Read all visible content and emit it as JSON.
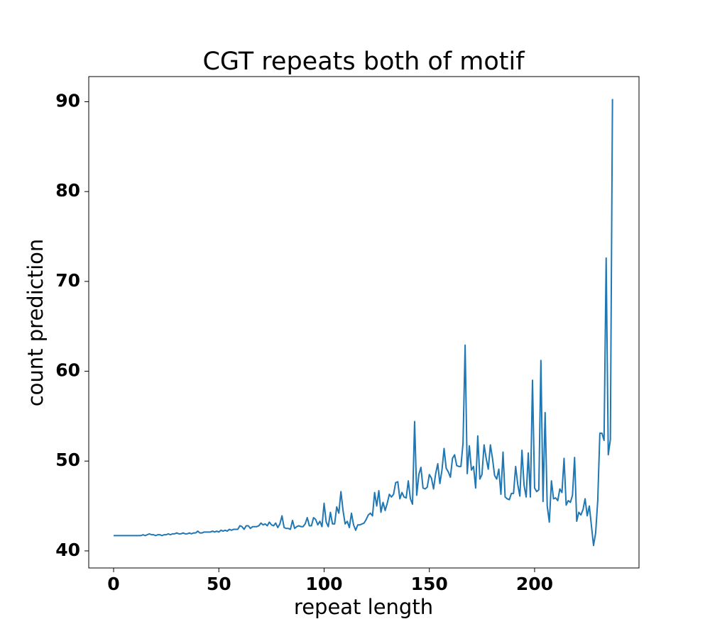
{
  "chart_data": {
    "type": "line",
    "title": "CGT repeats both of motif",
    "xlabel": "repeat length",
    "ylabel": "count prediction",
    "x": [
      0,
      1,
      2,
      3,
      4,
      5,
      6,
      7,
      8,
      9,
      10,
      11,
      12,
      13,
      14,
      15,
      16,
      17,
      18,
      19,
      20,
      21,
      22,
      23,
      24,
      25,
      26,
      27,
      28,
      29,
      30,
      31,
      32,
      33,
      34,
      35,
      36,
      37,
      38,
      39,
      40,
      41,
      42,
      43,
      44,
      45,
      46,
      47,
      48,
      49,
      50,
      51,
      52,
      53,
      54,
      55,
      56,
      57,
      58,
      59,
      60,
      61,
      62,
      63,
      64,
      65,
      66,
      67,
      68,
      69,
      70,
      71,
      72,
      73,
      74,
      75,
      76,
      77,
      78,
      79,
      80,
      81,
      82,
      83,
      84,
      85,
      86,
      87,
      88,
      89,
      90,
      91,
      92,
      93,
      94,
      95,
      96,
      97,
      98,
      99,
      100,
      101,
      102,
      103,
      104,
      105,
      106,
      107,
      108,
      109,
      110,
      111,
      112,
      113,
      114,
      115,
      116,
      117,
      118,
      119,
      120,
      121,
      122,
      123,
      124,
      125,
      126,
      127,
      128,
      129,
      130,
      131,
      132,
      133,
      134,
      135,
      136,
      137,
      138,
      139,
      140,
      141,
      142,
      143,
      144,
      145,
      146,
      147,
      148,
      149,
      150,
      151,
      152,
      153,
      154,
      155,
      156,
      157,
      158,
      159,
      160,
      161,
      162,
      163,
      164,
      165,
      166,
      167,
      168,
      169,
      170,
      171,
      172,
      173,
      174,
      175,
      176,
      177,
      178,
      179,
      180,
      181,
      182,
      183,
      184,
      185,
      186,
      187,
      188,
      189,
      190,
      191,
      192,
      193,
      194,
      195,
      196,
      197,
      198,
      199,
      200,
      201,
      202,
      203,
      204,
      205,
      206,
      207,
      208,
      209,
      210,
      211,
      212,
      213,
      214,
      215,
      216,
      217,
      218,
      219,
      220,
      221,
      222,
      223,
      224,
      225,
      226,
      227,
      228,
      229,
      230,
      231,
      232,
      233,
      234,
      235,
      236,
      237
    ],
    "series": [
      {
        "color": "#1f77b4",
        "values": [
          41.7,
          41.7,
          41.7,
          41.7,
          41.7,
          41.7,
          41.7,
          41.7,
          41.7,
          41.7,
          41.7,
          41.7,
          41.7,
          41.7,
          41.8,
          41.7,
          41.8,
          41.9,
          41.8,
          41.8,
          41.7,
          41.8,
          41.8,
          41.7,
          41.8,
          41.8,
          41.9,
          41.8,
          41.9,
          41.9,
          42.0,
          41.9,
          41.9,
          42.0,
          41.9,
          41.9,
          42.0,
          41.9,
          42.0,
          42.0,
          42.2,
          42.0,
          42.0,
          42.1,
          42.1,
          42.1,
          42.1,
          42.2,
          42.1,
          42.2,
          42.1,
          42.3,
          42.2,
          42.3,
          42.2,
          42.4,
          42.3,
          42.4,
          42.4,
          42.4,
          42.8,
          42.7,
          42.4,
          42.8,
          42.8,
          42.5,
          42.7,
          42.7,
          42.7,
          42.8,
          43.1,
          42.9,
          43.0,
          42.8,
          43.2,
          42.9,
          42.8,
          43.1,
          42.6,
          43.0,
          43.9,
          42.6,
          42.5,
          42.5,
          42.4,
          43.4,
          42.5,
          42.7,
          42.8,
          42.7,
          42.7,
          43.0,
          43.7,
          42.8,
          42.8,
          43.7,
          43.5,
          42.9,
          43.3,
          42.7,
          45.3,
          43.2,
          42.7,
          44.3,
          43.0,
          43.0,
          44.9,
          44.2,
          46.6,
          44.5,
          43.0,
          43.3,
          42.6,
          44.2,
          42.9,
          42.3,
          42.9,
          42.9,
          43.0,
          43.1,
          43.5,
          44.0,
          44.2,
          43.9,
          46.5,
          45.0,
          46.7,
          44.3,
          45.4,
          44.5,
          45.3,
          46.3,
          46.0,
          46.3,
          47.6,
          47.7,
          45.8,
          46.5,
          46.0,
          45.9,
          47.8,
          45.8,
          45.2,
          54.4,
          46.2,
          48.5,
          49.3,
          47.0,
          46.9,
          47.1,
          48.5,
          48.1,
          46.9,
          48.6,
          49.7,
          47.5,
          49.0,
          51.4,
          49.2,
          48.8,
          48.2,
          50.3,
          50.7,
          49.5,
          49.4,
          49.4,
          52.0,
          62.9,
          48.6,
          51.7,
          49.0,
          49.4,
          47.0,
          52.8,
          48.0,
          48.5,
          51.8,
          50.3,
          49.1,
          51.8,
          50.3,
          48.4,
          48.0,
          49.1,
          46.3,
          51.0,
          46.0,
          45.8,
          45.7,
          46.4,
          46.4,
          49.4,
          47.4,
          46.1,
          51.2,
          47.3,
          46.0,
          50.9,
          46.0,
          59.0,
          47.0,
          46.6,
          46.8,
          61.2,
          45.5,
          55.4,
          45.0,
          43.2,
          47.8,
          45.8,
          45.9,
          45.6,
          46.9,
          46.5,
          50.3,
          45.1,
          45.6,
          45.4,
          46.2,
          50.4,
          43.3,
          44.3,
          44.0,
          44.6,
          45.8,
          43.9,
          45.0,
          42.8,
          40.6,
          42.0,
          45.6,
          53.1,
          53.1,
          52.3,
          72.6,
          50.7,
          52.4,
          90.3
        ]
      }
    ],
    "xlim": [
      -11.8,
      249.6
    ],
    "ylim": [
      38.1,
      92.8
    ],
    "xticks": [
      0,
      50,
      100,
      150,
      200
    ],
    "yticks": [
      40,
      50,
      60,
      70,
      80,
      90
    ]
  }
}
